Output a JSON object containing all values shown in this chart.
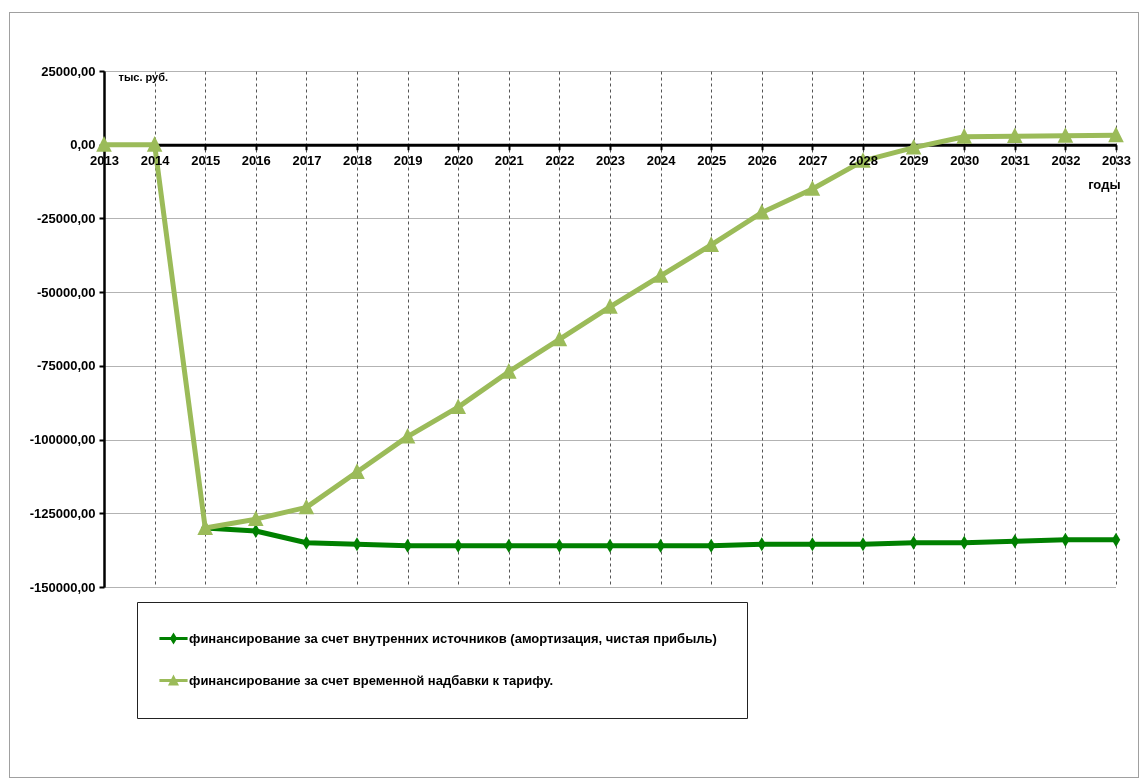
{
  "chart_data": {
    "type": "line",
    "ylabel": "тыс. руб.",
    "xlabel": "годы",
    "categories": [
      "2013",
      "2014",
      "2015",
      "2016",
      "2017",
      "2018",
      "2019",
      "2020",
      "2021",
      "2022",
      "2023",
      "2024",
      "2025",
      "2026",
      "2027",
      "2028",
      "2029",
      "2030",
      "2031",
      "2032",
      "2033"
    ],
    "ylim": [
      -150000,
      25000
    ],
    "yticks": [
      {
        "value": 25000,
        "label": "25000,00"
      },
      {
        "value": 0,
        "label": "0,00"
      },
      {
        "value": -25000,
        "label": "-25000,00"
      },
      {
        "value": -50000,
        "label": "-50000,00"
      },
      {
        "value": -75000,
        "label": "-75000,00"
      },
      {
        "value": -100000,
        "label": "-100000,00"
      },
      {
        "value": -125000,
        "label": "-125000,00"
      },
      {
        "value": -150000,
        "label": "-150000,00"
      }
    ],
    "grid": true,
    "legend": "bottom",
    "line_style": "solid",
    "series": [
      {
        "name": "финансирование за счет внутренних источников (амортизация, чистая прибыль)",
        "color": "#008000",
        "marker": "diamond",
        "values": [
          null,
          null,
          -130000,
          -131000,
          -135000,
          -135500,
          -136000,
          -136000,
          -136000,
          -136000,
          -136000,
          -136000,
          -136000,
          -135500,
          -135500,
          -135500,
          -135000,
          -135000,
          -134500,
          -134000,
          -134000
        ]
      },
      {
        "name": "финансирование за счет временной надбавки к тарифу.",
        "color": "#9bbb59",
        "marker": "triangle",
        "values": [
          0,
          0,
          -130000,
          -127000,
          -123000,
          -111000,
          -99000,
          -89000,
          -77000,
          -66000,
          -55000,
          -44500,
          -34000,
          -23000,
          -15000,
          -5500,
          -1000,
          2700,
          2900,
          3000,
          3200
        ]
      }
    ]
  }
}
